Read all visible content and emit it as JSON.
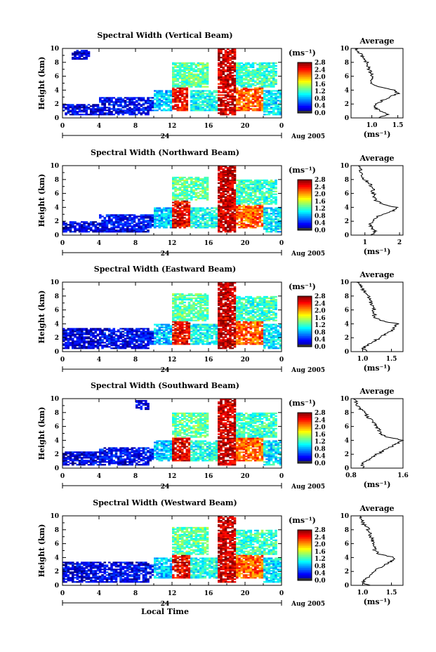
{
  "chart_data": [
    {
      "type": "heatmap",
      "title": "Spectral Width (Vertical Beam)",
      "ylabel": "Height (km)",
      "xticks": [
        "0",
        "4",
        "8",
        "12",
        "16",
        "20",
        "0"
      ],
      "yticks": [
        "0",
        "2",
        "4",
        "6",
        "8",
        "10"
      ],
      "ylim": [
        0,
        10
      ],
      "date_mark": "24",
      "date_label": "Aug 2005",
      "colorbar": {
        "unit": "(ms⁻¹)",
        "ticks": [
          "0.0",
          "0.4",
          "0.8",
          "1.2",
          "1.6",
          "2.0",
          "2.4",
          "2.8"
        ],
        "range": [
          0.0,
          2.8
        ]
      },
      "regions": [
        {
          "t0": 0.0,
          "t1": 9.5,
          "h0": 0.5,
          "h1": 2.0,
          "v": 0.25
        },
        {
          "t0": 4.0,
          "t1": 10.5,
          "h0": 1.0,
          "h1": 3.0,
          "v": 0.35
        },
        {
          "t0": 1.0,
          "t1": 3.0,
          "h0": 8.5,
          "h1": 9.8,
          "v": 0.2
        },
        {
          "t0": 10.0,
          "t1": 12.0,
          "h0": 1.0,
          "h1": 4.0,
          "v": 0.9
        },
        {
          "t0": 12.0,
          "t1": 13.8,
          "h0": 1.0,
          "h1": 4.5,
          "v": 2.5
        },
        {
          "t0": 12.0,
          "t1": 16.0,
          "h0": 4.5,
          "h1": 8.0,
          "v": 1.3
        },
        {
          "t0": 14.0,
          "t1": 17.0,
          "h0": 1.0,
          "h1": 4.0,
          "v": 1.1
        },
        {
          "t0": 17.0,
          "t1": 19.0,
          "h0": 0.5,
          "h1": 10.0,
          "v": 2.6
        },
        {
          "t0": 19.0,
          "t1": 22.0,
          "h0": 1.0,
          "h1": 4.5,
          "v": 2.2
        },
        {
          "t0": 19.0,
          "t1": 23.5,
          "h0": 4.5,
          "h1": 8.0,
          "v": 1.2
        },
        {
          "t0": 22.0,
          "t1": 24.0,
          "h0": 0.5,
          "h1": 4.0,
          "v": 1.0
        }
      ],
      "average": {
        "title": "Average",
        "xlabel": "(ms⁻¹)",
        "xticks": [
          "1.0",
          "1.5"
        ],
        "xlim": [
          0.6,
          1.6
        ],
        "profile": [
          [
            0.0,
            1.15
          ],
          [
            0.5,
            1.3
          ],
          [
            1.0,
            1.15
          ],
          [
            1.5,
            1.05
          ],
          [
            2.0,
            1.1
          ],
          [
            2.5,
            1.2
          ],
          [
            3.0,
            1.35
          ],
          [
            3.5,
            1.5
          ],
          [
            4.0,
            1.45
          ],
          [
            4.5,
            1.1
          ],
          [
            5.0,
            1.0
          ],
          [
            6.0,
            1.0
          ],
          [
            7.0,
            0.95
          ],
          [
            8.0,
            0.9
          ],
          [
            9.0,
            0.8
          ],
          [
            10.0,
            0.7
          ]
        ]
      }
    },
    {
      "type": "heatmap",
      "title": "Spectral Width (Northward Beam)",
      "ylabel": "Height (km)",
      "xticks": [
        "0",
        "4",
        "8",
        "12",
        "16",
        "20",
        "0"
      ],
      "yticks": [
        "0",
        "2",
        "4",
        "6",
        "8",
        "10"
      ],
      "ylim": [
        0,
        10
      ],
      "date_mark": "24",
      "date_label": "Aug 2005",
      "colorbar": {
        "unit": "(ms⁻¹)",
        "ticks": [
          "0.0",
          "0.4",
          "0.8",
          "1.2",
          "1.6",
          "2.0",
          "2.4",
          "2.8"
        ],
        "range": [
          0.0,
          2.8
        ]
      },
      "regions": [
        {
          "t0": 0.0,
          "t1": 9.5,
          "h0": 0.5,
          "h1": 2.0,
          "v": 0.25
        },
        {
          "t0": 4.0,
          "t1": 10.5,
          "h0": 1.0,
          "h1": 3.0,
          "v": 0.35
        },
        {
          "t0": 10.0,
          "t1": 12.0,
          "h0": 1.0,
          "h1": 4.0,
          "v": 0.9
        },
        {
          "t0": 12.0,
          "t1": 14.0,
          "h0": 1.0,
          "h1": 5.0,
          "v": 2.5
        },
        {
          "t0": 12.0,
          "t1": 16.0,
          "h0": 5.0,
          "h1": 8.5,
          "v": 1.3
        },
        {
          "t0": 14.0,
          "t1": 17.0,
          "h0": 1.0,
          "h1": 4.0,
          "v": 1.1
        },
        {
          "t0": 17.0,
          "t1": 19.0,
          "h0": 0.5,
          "h1": 10.0,
          "v": 2.6
        },
        {
          "t0": 19.0,
          "t1": 22.0,
          "h0": 1.0,
          "h1": 4.5,
          "v": 2.2
        },
        {
          "t0": 19.0,
          "t1": 23.5,
          "h0": 4.5,
          "h1": 8.0,
          "v": 1.2
        },
        {
          "t0": 22.0,
          "t1": 24.0,
          "h0": 0.5,
          "h1": 4.0,
          "v": 1.0
        }
      ],
      "average": {
        "title": "Average",
        "xlabel": "(ms⁻¹)",
        "xticks": [
          "1",
          "2"
        ],
        "xlim": [
          0.6,
          2.1
        ],
        "profile": [
          [
            0.0,
            1.2
          ],
          [
            0.5,
            1.3
          ],
          [
            1.0,
            1.2
          ],
          [
            1.5,
            1.15
          ],
          [
            2.0,
            1.2
          ],
          [
            2.5,
            1.3
          ],
          [
            3.0,
            1.5
          ],
          [
            3.5,
            1.8
          ],
          [
            4.0,
            1.9
          ],
          [
            4.5,
            1.5
          ],
          [
            5.0,
            1.3
          ],
          [
            6.0,
            1.25
          ],
          [
            7.0,
            1.2
          ],
          [
            8.0,
            1.0
          ],
          [
            9.0,
            0.9
          ],
          [
            10.0,
            0.8
          ]
        ]
      }
    },
    {
      "type": "heatmap",
      "title": "Spectral Width (Eastward Beam)",
      "ylabel": "Height (km)",
      "xticks": [
        "0",
        "4",
        "8",
        "12",
        "16",
        "20",
        "0"
      ],
      "yticks": [
        "0",
        "2",
        "4",
        "6",
        "8",
        "10"
      ],
      "ylim": [
        0,
        10
      ],
      "date_mark": "24",
      "date_label": "Aug 2005",
      "colorbar": {
        "unit": "(ms⁻¹)",
        "ticks": [
          "0.0",
          "0.4",
          "0.8",
          "1.2",
          "1.6",
          "2.0",
          "2.4",
          "2.8"
        ],
        "range": [
          0.0,
          2.8
        ]
      },
      "regions": [
        {
          "t0": 0.0,
          "t1": 9.5,
          "h0": 0.5,
          "h1": 3.5,
          "v": 0.25
        },
        {
          "t0": 4.0,
          "t1": 10.5,
          "h0": 1.0,
          "h1": 3.0,
          "v": 0.35
        },
        {
          "t0": 10.0,
          "t1": 12.0,
          "h0": 1.0,
          "h1": 4.0,
          "v": 0.9
        },
        {
          "t0": 12.0,
          "t1": 14.0,
          "h0": 1.0,
          "h1": 4.5,
          "v": 2.5
        },
        {
          "t0": 12.0,
          "t1": 16.0,
          "h0": 4.5,
          "h1": 8.5,
          "v": 1.3
        },
        {
          "t0": 14.0,
          "t1": 17.0,
          "h0": 1.0,
          "h1": 4.0,
          "v": 1.1
        },
        {
          "t0": 17.0,
          "t1": 19.0,
          "h0": 0.5,
          "h1": 10.0,
          "v": 2.6
        },
        {
          "t0": 19.0,
          "t1": 22.0,
          "h0": 1.0,
          "h1": 4.5,
          "v": 2.2
        },
        {
          "t0": 19.0,
          "t1": 23.5,
          "h0": 4.5,
          "h1": 8.0,
          "v": 1.2
        },
        {
          "t0": 22.0,
          "t1": 24.0,
          "h0": 0.5,
          "h1": 4.0,
          "v": 1.0
        }
      ],
      "average": {
        "title": "Average",
        "xlabel": "(ms⁻¹)",
        "xticks": [
          "1.0",
          "1.5"
        ],
        "xlim": [
          0.8,
          1.7
        ],
        "profile": [
          [
            0.0,
            1.1
          ],
          [
            0.5,
            1.0
          ],
          [
            1.0,
            1.1
          ],
          [
            1.5,
            1.2
          ],
          [
            2.0,
            1.3
          ],
          [
            2.5,
            1.4
          ],
          [
            3.0,
            1.5
          ],
          [
            3.5,
            1.55
          ],
          [
            4.0,
            1.6
          ],
          [
            4.5,
            1.3
          ],
          [
            5.0,
            1.2
          ],
          [
            6.0,
            1.2
          ],
          [
            7.0,
            1.15
          ],
          [
            8.0,
            1.1
          ],
          [
            9.0,
            1.0
          ],
          [
            10.0,
            0.9
          ]
        ]
      }
    },
    {
      "type": "heatmap",
      "title": "Spectral Width (Southward Beam)",
      "ylabel": "Height (km)",
      "xticks": [
        "0",
        "4",
        "8",
        "12",
        "16",
        "20",
        "0"
      ],
      "yticks": [
        "0",
        "2",
        "4",
        "6",
        "8",
        "10"
      ],
      "ylim": [
        0,
        10
      ],
      "date_mark": "24",
      "date_label": "Aug 2005",
      "colorbar": {
        "unit": "(ms⁻¹)",
        "ticks": [
          "0.0",
          "0.4",
          "0.8",
          "1.2",
          "1.6",
          "2.0",
          "2.4",
          "2.8"
        ],
        "range": [
          0.0,
          2.8
        ]
      },
      "regions": [
        {
          "t0": 0.0,
          "t1": 9.5,
          "h0": 0.5,
          "h1": 2.5,
          "v": 0.25
        },
        {
          "t0": 4.0,
          "t1": 10.5,
          "h0": 1.0,
          "h1": 3.0,
          "v": 0.35
        },
        {
          "t0": 8.0,
          "t1": 9.5,
          "h0": 8.5,
          "h1": 9.8,
          "v": 0.2
        },
        {
          "t0": 10.0,
          "t1": 12.0,
          "h0": 1.0,
          "h1": 4.0,
          "v": 0.9
        },
        {
          "t0": 12.0,
          "t1": 14.0,
          "h0": 1.0,
          "h1": 4.5,
          "v": 2.5
        },
        {
          "t0": 12.0,
          "t1": 16.0,
          "h0": 4.5,
          "h1": 8.0,
          "v": 1.3
        },
        {
          "t0": 14.0,
          "t1": 17.0,
          "h0": 1.0,
          "h1": 4.0,
          "v": 1.1
        },
        {
          "t0": 17.0,
          "t1": 19.0,
          "h0": 0.5,
          "h1": 10.0,
          "v": 2.6
        },
        {
          "t0": 19.0,
          "t1": 22.0,
          "h0": 1.0,
          "h1": 4.5,
          "v": 2.2
        },
        {
          "t0": 19.0,
          "t1": 23.5,
          "h0": 4.5,
          "h1": 8.0,
          "v": 1.2
        },
        {
          "t0": 22.0,
          "t1": 24.0,
          "h0": 0.5,
          "h1": 4.0,
          "v": 1.0
        }
      ],
      "average": {
        "title": "Average",
        "xlabel": "(ms⁻¹)",
        "xticks": [
          "0.8",
          "1.6"
        ],
        "xlim": [
          0.8,
          1.6
        ],
        "profile": [
          [
            0.0,
            1.0
          ],
          [
            0.5,
            0.95
          ],
          [
            1.0,
            1.05
          ],
          [
            1.5,
            1.1
          ],
          [
            2.0,
            1.2
          ],
          [
            2.5,
            1.3
          ],
          [
            3.0,
            1.4
          ],
          [
            3.5,
            1.5
          ],
          [
            4.0,
            1.6
          ],
          [
            4.5,
            1.35
          ],
          [
            5.0,
            1.25
          ],
          [
            6.0,
            1.2
          ],
          [
            7.0,
            1.1
          ],
          [
            8.0,
            1.0
          ],
          [
            9.0,
            0.9
          ],
          [
            10.0,
            0.85
          ]
        ]
      }
    },
    {
      "type": "heatmap",
      "title": "Spectral Width (Westward Beam)",
      "ylabel": "Height (km)",
      "xticks": [
        "0",
        "4",
        "8",
        "12",
        "16",
        "20",
        "0"
      ],
      "yticks": [
        "0",
        "2",
        "4",
        "6",
        "8",
        "10"
      ],
      "ylim": [
        0,
        10
      ],
      "date_mark": "24",
      "date_label": "Aug 2005",
      "xlabel": "Local Time",
      "colorbar": {
        "unit": "(ms⁻¹)",
        "ticks": [
          "0.0",
          "0.4",
          "0.8",
          "1.2",
          "1.6",
          "2.0",
          "2.4",
          "2.8"
        ],
        "range": [
          0.0,
          2.8
        ]
      },
      "regions": [
        {
          "t0": 0.0,
          "t1": 9.5,
          "h0": 0.5,
          "h1": 3.5,
          "v": 0.25
        },
        {
          "t0": 4.0,
          "t1": 10.5,
          "h0": 1.0,
          "h1": 3.0,
          "v": 0.35
        },
        {
          "t0": 10.0,
          "t1": 12.0,
          "h0": 1.0,
          "h1": 4.0,
          "v": 0.9
        },
        {
          "t0": 12.0,
          "t1": 14.0,
          "h0": 1.0,
          "h1": 4.5,
          "v": 2.5
        },
        {
          "t0": 12.0,
          "t1": 16.0,
          "h0": 4.5,
          "h1": 8.5,
          "v": 1.3
        },
        {
          "t0": 14.0,
          "t1": 17.0,
          "h0": 1.0,
          "h1": 4.0,
          "v": 1.1
        },
        {
          "t0": 17.0,
          "t1": 19.0,
          "h0": 0.5,
          "h1": 10.0,
          "v": 2.6
        },
        {
          "t0": 19.0,
          "t1": 22.0,
          "h0": 1.0,
          "h1": 4.5,
          "v": 2.2
        },
        {
          "t0": 19.0,
          "t1": 23.5,
          "h0": 4.5,
          "h1": 8.0,
          "v": 1.2
        },
        {
          "t0": 22.0,
          "t1": 24.0,
          "h0": 0.5,
          "h1": 4.0,
          "v": 1.0
        }
      ],
      "average": {
        "title": "Average",
        "xlabel": "(ms⁻¹)",
        "xticks": [
          "1.0",
          "1.5"
        ],
        "xlim": [
          0.8,
          1.7
        ],
        "profile": [
          [
            0.0,
            1.1
          ],
          [
            0.5,
            1.0
          ],
          [
            1.0,
            1.05
          ],
          [
            1.5,
            1.15
          ],
          [
            2.0,
            1.2
          ],
          [
            2.5,
            1.3
          ],
          [
            3.0,
            1.4
          ],
          [
            3.5,
            1.5
          ],
          [
            4.0,
            1.55
          ],
          [
            4.5,
            1.3
          ],
          [
            5.0,
            1.2
          ],
          [
            6.0,
            1.2
          ],
          [
            7.0,
            1.15
          ],
          [
            8.0,
            1.1
          ],
          [
            9.0,
            1.0
          ],
          [
            10.0,
            0.95
          ]
        ]
      }
    }
  ]
}
